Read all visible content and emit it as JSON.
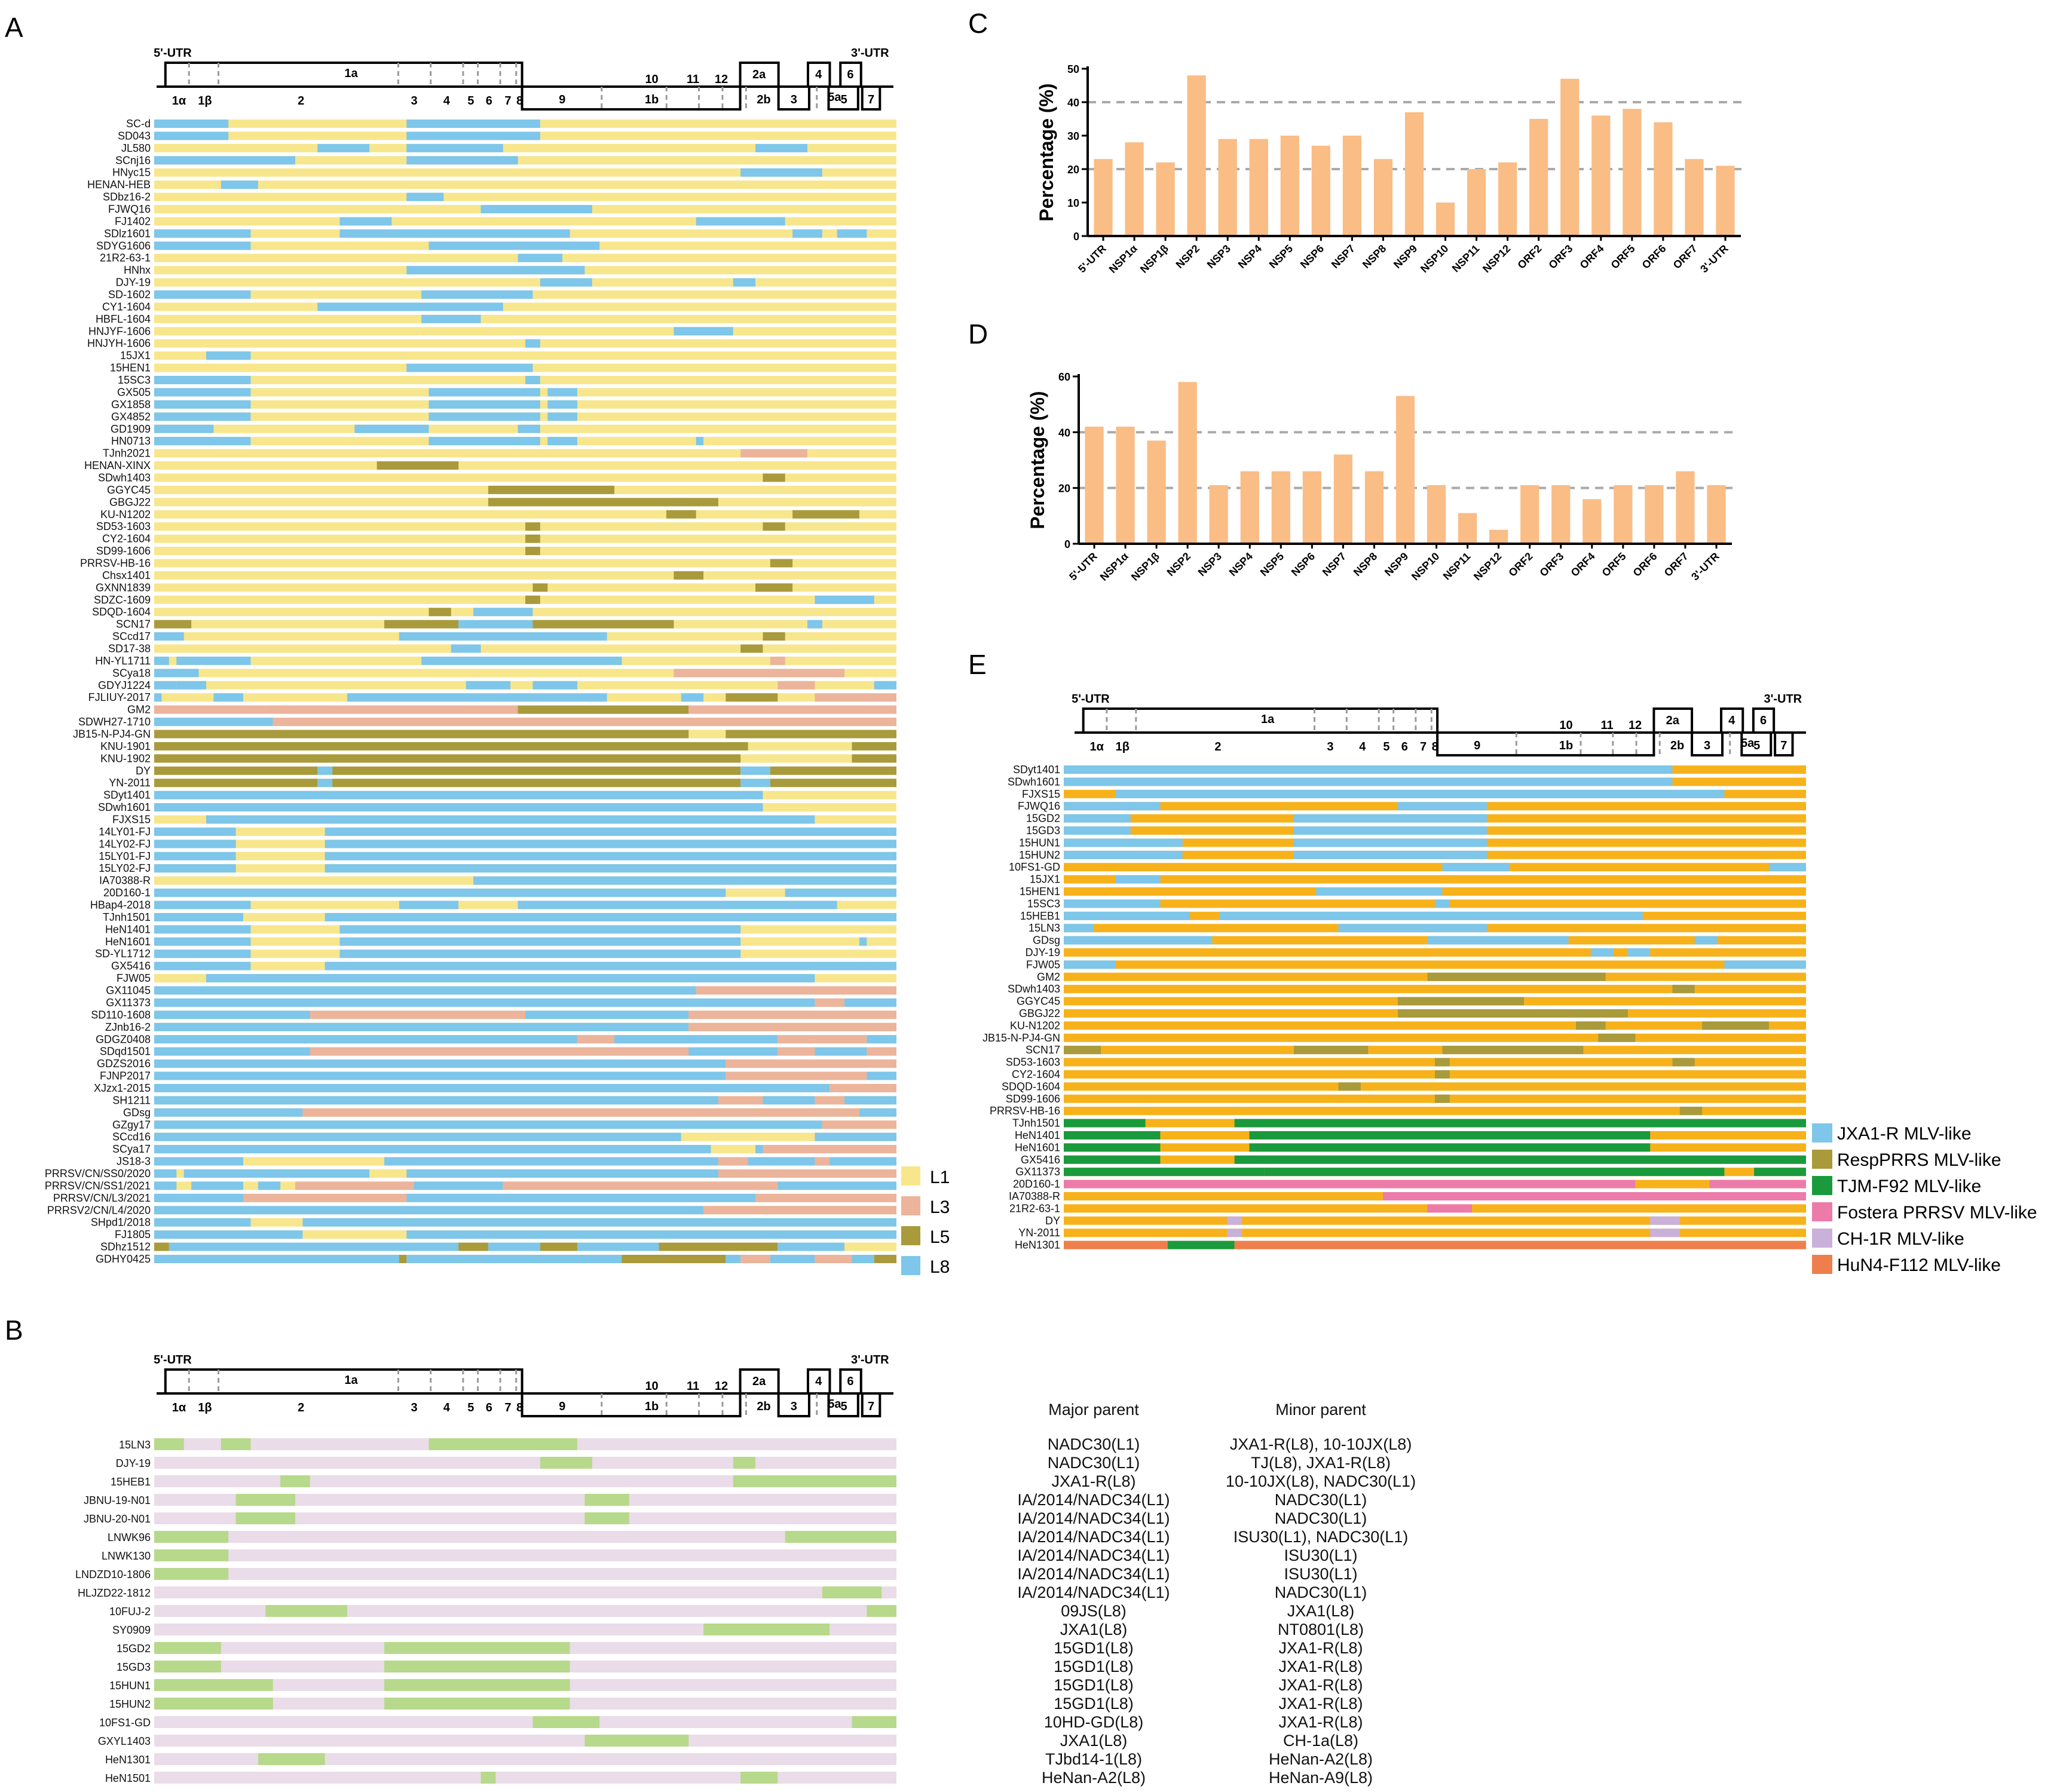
{
  "panel_labels": {
    "A": "A",
    "B": "B",
    "C": "C",
    "D": "D",
    "E": "E"
  },
  "genome": {
    "utr5": "5'-UTR",
    "utr3": "3'-UTR",
    "top": [
      "1a",
      "9",
      "10",
      "11",
      "12",
      "2a",
      "4",
      "6"
    ],
    "bottom": [
      "1α",
      "1β",
      "2",
      "3",
      "4",
      "5",
      "6",
      "7",
      "8",
      "1b",
      "2b",
      "3",
      "5",
      "7"
    ],
    "top_extra": [
      "5a"
    ]
  },
  "colors": {
    "L1": "#F8E68C",
    "L3": "#EBB49B",
    "L5": "#A99A3C",
    "L8": "#7EC6EA",
    "JXA1": "#7EC6EA",
    "Resp": "#A99A3C",
    "TJM": "#1A9A3C",
    "Fostera": "#EC7BAA",
    "CH1R": "#C9B1D9",
    "HuN4": "#EE7F4C",
    "orange": "#F7B21B",
    "minorB": "#EBDCE9",
    "majorB": "#B7D98B",
    "bar": "#F9BD85"
  },
  "panelA": {
    "legend": [
      "L1",
      "L3",
      "L5",
      "L8"
    ],
    "rows": [
      "SC-d",
      "SD043",
      "JL580",
      "SCnj16",
      "HNyc15",
      "HENAN-HEB",
      "SDbz16-2",
      "FJWQ16",
      "FJ1402",
      "SDlz1601",
      "SDYG1606",
      "21R2-63-1",
      "HNhx",
      "DJY-19",
      "SD-1602",
      "CY1-1604",
      "HBFL-1604",
      "HNJYF-1606",
      "HNJYH-1606",
      "15JX1",
      "15HEN1",
      "15SC3",
      "GX505",
      "GX1858",
      "GX4852",
      "GD1909",
      "HN0713",
      "TJnh2021",
      "HENAN-XINX",
      "SDwh1403",
      "GGYC45",
      "GBGJ22",
      "KU-N1202",
      "SD53-1603",
      "CY2-1604",
      "SD99-1606",
      "PRRSV-HB-16",
      "Chsx1401",
      "GXNN1839",
      "SDZC-1609",
      "SDQD-1604",
      "SCN17",
      "SCcd17",
      "SD17-38",
      "HN-YL1711",
      "SCya18",
      "GDYJ1224",
      "FJLIUY-2017",
      "GM2",
      "SDWH27-1710",
      "JB15-N-PJ4-GN",
      "KNU-1901",
      "KNU-1902",
      "DY",
      "YN-2011",
      "SDyt1401",
      "SDwh1601",
      "FJXS15",
      "14LY01-FJ",
      "14LY02-FJ",
      "15LY01-FJ",
      "15LY02-FJ",
      "IA70388-R",
      "20D160-1",
      "HBap4-2018",
      "TJnh1501",
      "HeN1401",
      "HeN1601",
      "SD-YL1712",
      "GX5416",
      "FJW05",
      "GX11045",
      "GX11373",
      "SD110-1608",
      "ZJnb16-2",
      "GDGZ0408",
      "SDqd1501",
      "GDZS2016",
      "FJNP2017",
      "XJzx1-2015",
      "SH1211",
      "GDsg",
      "GZgy17",
      "SCcd16",
      "SCya17",
      "JS18-3",
      "PRRSV/CN/SS0/2020",
      "PRRSV/CN/SS1/2021",
      "PRRSV/CN/L3/2021",
      "PRRSV2/CN/L4/2020",
      "SHpd1/2018",
      "FJ1805",
      "SDhz1512",
      "GDHY0425"
    ]
  },
  "panelB": {
    "header_major": "Major parent",
    "header_minor": "Minor parent",
    "rows": [
      {
        "name": "15LN3",
        "major": "NADC30(L1)",
        "minor": "JXA1-R(L8), 10-10JX(L8)"
      },
      {
        "name": "DJY-19",
        "major": "NADC30(L1)",
        "minor": "TJ(L8), JXA1-R(L8)"
      },
      {
        "name": "15HEB1",
        "major": "JXA1-R(L8)",
        "minor": "10-10JX(L8), NADC30(L1)"
      },
      {
        "name": "JBNU-19-N01",
        "major": "IA/2014/NADC34(L1)",
        "minor": "NADC30(L1)"
      },
      {
        "name": "JBNU-20-N01",
        "major": "IA/2014/NADC34(L1)",
        "minor": "NADC30(L1)"
      },
      {
        "name": "LNWK96",
        "major": "IA/2014/NADC34(L1)",
        "minor": "ISU30(L1), NADC30(L1)"
      },
      {
        "name": "LNWK130",
        "major": "IA/2014/NADC34(L1)",
        "minor": "ISU30(L1)"
      },
      {
        "name": "LNDZD10-1806",
        "major": "IA/2014/NADC34(L1)",
        "minor": "ISU30(L1)"
      },
      {
        "name": "HLJZD22-1812",
        "major": "IA/2014/NADC34(L1)",
        "minor": "NADC30(L1)"
      },
      {
        "name": "10FUJ-2",
        "major": "09JS(L8)",
        "minor": "JXA1(L8)"
      },
      {
        "name": "SY0909",
        "major": "JXA1(L8)",
        "minor": "NT0801(L8)"
      },
      {
        "name": "15GD2",
        "major": "15GD1(L8)",
        "minor": "JXA1-R(L8)"
      },
      {
        "name": "15GD3",
        "major": "15GD1(L8)",
        "minor": "JXA1-R(L8)"
      },
      {
        "name": "15HUN1",
        "major": "15GD1(L8)",
        "minor": "JXA1-R(L8)"
      },
      {
        "name": "15HUN2",
        "major": "15GD1(L8)",
        "minor": "JXA1-R(L8)"
      },
      {
        "name": "10FS1-GD",
        "major": "10HD-GD(L8)",
        "minor": "JXA1-R(L8)"
      },
      {
        "name": "GXYL1403",
        "major": "JXA1(L8)",
        "minor": "CH-1a(L8)"
      },
      {
        "name": "HeN1301",
        "major": "TJbd14-1(L8)",
        "minor": "HeNan-A2(L8)"
      },
      {
        "name": "HeN1501",
        "major": "HeNan-A2(L8)",
        "minor": "HeNan-A9(L8)"
      }
    ]
  },
  "panelE": {
    "legend": [
      "JXA1-R MLV-like",
      "RespPRRS MLV-like",
      "TJM-F92 MLV-like",
      "Fostera PRRSV MLV-like",
      "CH-1R MLV-like",
      "HuN4-F112 MLV-like"
    ],
    "rows": [
      "SDyt1401",
      "SDwh1601",
      "FJXS15",
      "FJWQ16",
      "15GD2",
      "15GD3",
      "15HUN1",
      "15HUN2",
      "10FS1-GD",
      "15JX1",
      "15HEN1",
      "15SC3",
      "15HEB1",
      "15LN3",
      "GDsg",
      "DJY-19",
      "FJW05",
      "GM2",
      "SDwh1403",
      "GGYC45",
      "GBGJ22",
      "KU-N1202",
      "JB15-N-PJ4-GN",
      "SCN17",
      "SD53-1603",
      "CY2-1604",
      "SDQD-1604",
      "SD99-1606",
      "PRRSV-HB-16",
      "TJnh1501",
      "HeN1401",
      "HeN1601",
      "GX5416",
      "GX11373",
      "20D160-1",
      "IA70388-R",
      "21R2-63-1",
      "DY",
      "YN-2011",
      "HeN1301"
    ]
  },
  "chart_data": [
    {
      "type": "bar",
      "panel": "C",
      "ylabel": "Percentage (%)",
      "ylim": [
        0,
        50
      ],
      "yticks": [
        0,
        10,
        20,
        30,
        40,
        50
      ],
      "reference_lines": [
        20,
        40
      ],
      "categories": [
        "5'-UTR",
        "NSP1α",
        "NSP1β",
        "NSP2",
        "NSP3",
        "NSP4",
        "NSP5",
        "NSP6",
        "NSP7",
        "NSP8",
        "NSP9",
        "NSP10",
        "NSP11",
        "NSP12",
        "ORF2",
        "ORF3",
        "ORF4",
        "ORF5",
        "ORF6",
        "ORF7",
        "3'-UTR"
      ],
      "values": [
        23,
        28,
        22,
        48,
        29,
        29,
        30,
        27,
        30,
        23,
        37,
        10,
        20,
        22,
        35,
        47,
        36,
        38,
        34,
        23,
        21
      ]
    },
    {
      "type": "bar",
      "panel": "D",
      "ylabel": "Percentage (%)",
      "ylim": [
        0,
        60
      ],
      "yticks": [
        0,
        20,
        40,
        60
      ],
      "reference_lines": [
        20,
        40
      ],
      "categories": [
        "5'-UTR",
        "NSP1α",
        "NSP1β",
        "NSP2",
        "NSP3",
        "NSP4",
        "NSP5",
        "NSP6",
        "NSP7",
        "NSP8",
        "NSP9",
        "NSP10",
        "NSP11",
        "NSP12",
        "ORF2",
        "ORF3",
        "ORF4",
        "ORF5",
        "ORF6",
        "ORF7",
        "3'-UTR"
      ],
      "values": [
        42,
        42,
        37,
        58,
        21,
        26,
        26,
        26,
        32,
        26,
        53,
        21,
        11,
        5,
        21,
        21,
        16,
        21,
        21,
        26,
        21
      ]
    }
  ]
}
